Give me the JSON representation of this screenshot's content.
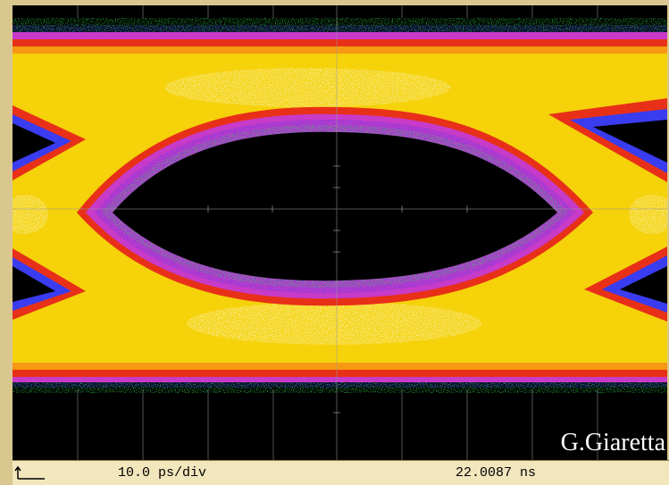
{
  "scope": {
    "timebase_label": "10.0 ps/div",
    "timestamp_label": "22.0087 ns",
    "marker_icon": "trigger-marker-icon"
  },
  "display": {
    "type": "eye-diagram",
    "graticule": {
      "h_divisions": 10,
      "v_divisions": 8
    },
    "palette": {
      "background": "#000000",
      "low_density": "#2fd24a",
      "density_blue": "#3a3cf0",
      "density_magenta": "#e040e0",
      "density_red": "#e83018",
      "density_orange": "#f59a12",
      "density_yellow": "#f5d20a",
      "peak_density": "#ffffff",
      "frame": "#d9c78f",
      "status_bar": "#f2e6bd"
    }
  },
  "watermark": {
    "text": "G.Giaretta"
  }
}
